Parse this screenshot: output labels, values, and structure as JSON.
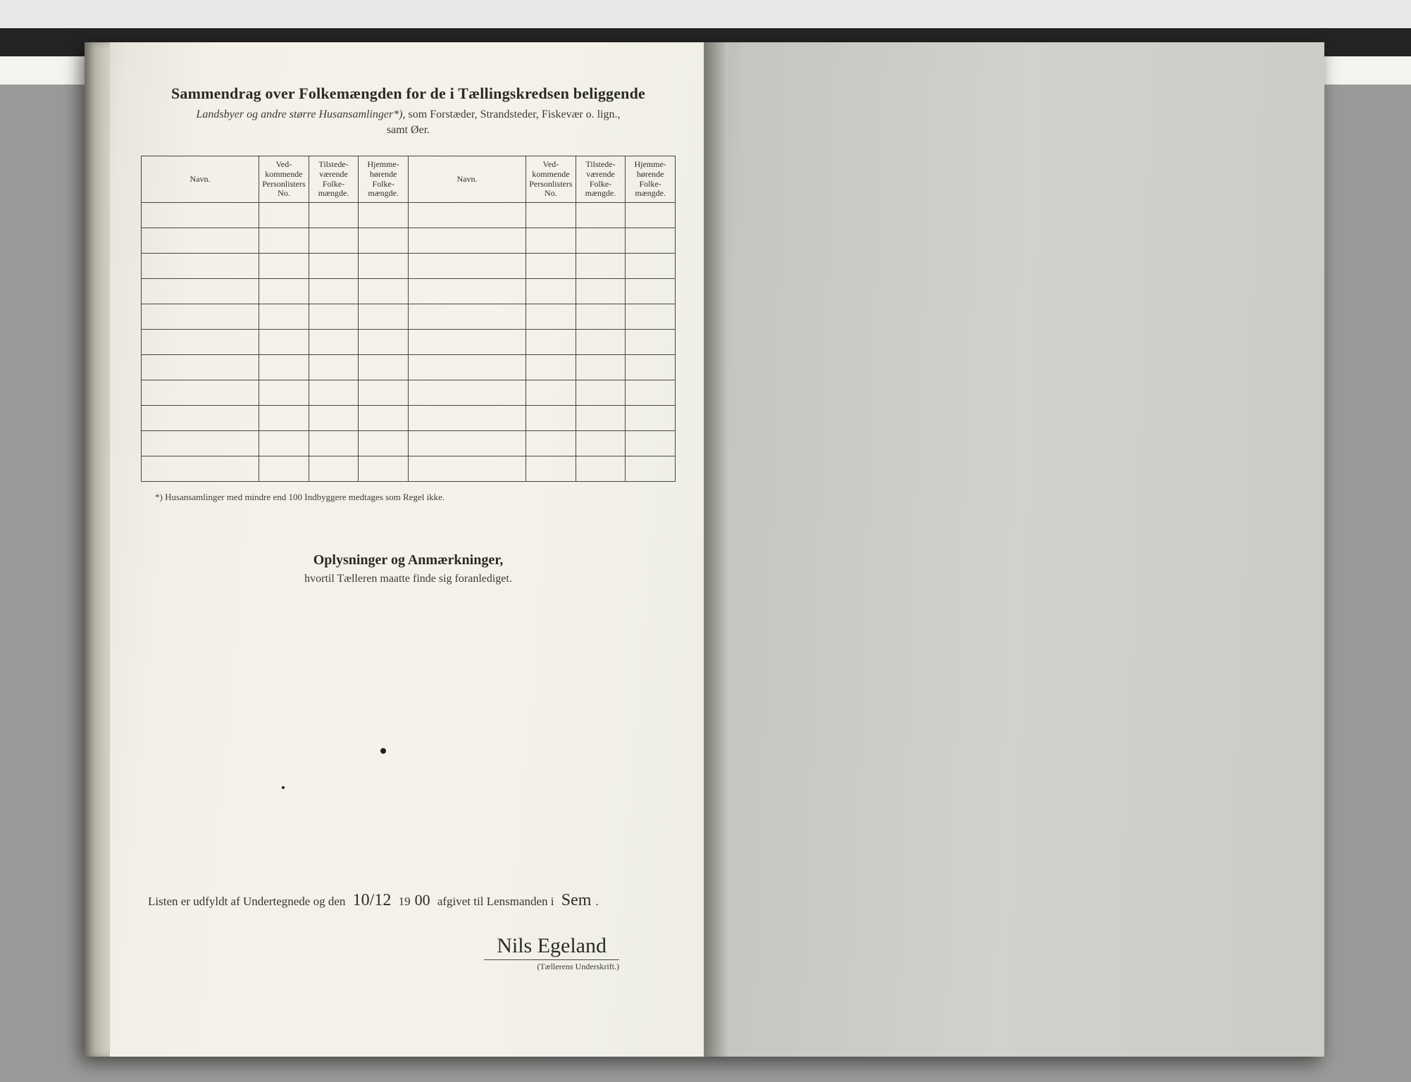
{
  "header": {
    "title": "Sammendrag over Folkemængden for de i Tællingskredsen beliggende",
    "subtitle_italic": "Landsbyer og andre større Husansamlinger*)",
    "subtitle_rest": ", som Forstæder, Strandsteder, Fiskevær o. lign.,",
    "subtitle_line2": "samt Øer."
  },
  "table": {
    "columns": [
      "Navn.",
      "Ved-kommende Personlisters No.",
      "Tilstede-værende Folke-mængde.",
      "Hjemme-hørende Folke-mængde.",
      "Navn.",
      "Ved-kommende Personlisters No.",
      "Tilstede-værende Folke-mængde.",
      "Hjemme-hørende Folke-mængde."
    ],
    "blank_rows": 11,
    "col_classes": [
      "col-navn",
      "col-small",
      "col-small",
      "col-small",
      "col-navn",
      "col-small",
      "col-small",
      "col-small"
    ],
    "border_color": "#46453f"
  },
  "footnote": "*) Husansamlinger med mindre end 100 Indbyggere medtages som Regel ikke.",
  "section2": {
    "title": "Oplysninger og Anmærkninger,",
    "sub": "hvortil Tælleren maatte finde sig foranlediget."
  },
  "bottom": {
    "line_pre": "Listen er udfyldt af Undertegnede og den ",
    "date": "10/12",
    "year_pre": " 19",
    "year": "00",
    "line_mid": " afgivet til Lensmanden i ",
    "place": "Sem",
    "signature": "Nils Egeland",
    "sig_label": "(Tællerens Underskrift.)"
  },
  "colors": {
    "ink": "#2a2a26",
    "paper_left": "#f3f1e7",
    "paper_right": "#cccbc6"
  }
}
